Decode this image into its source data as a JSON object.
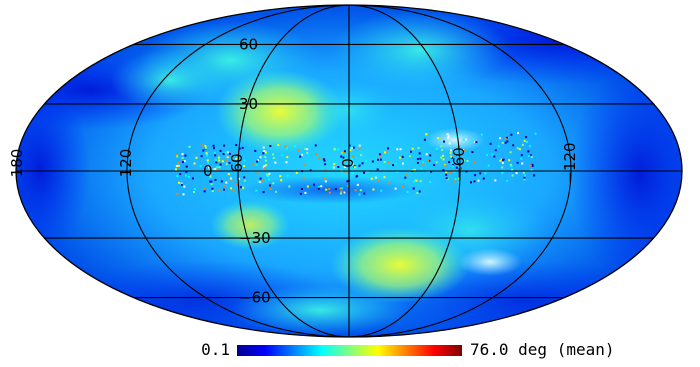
{
  "chart_data": {
    "type": "heatmap",
    "projection": "mollweide",
    "colormap": "jet",
    "colormap_stops": [
      "#00008f",
      "#0000ff",
      "#0080ff",
      "#00ffff",
      "#80ff80",
      "#ffff00",
      "#ff8000",
      "#ff0000",
      "#800000"
    ],
    "background": "#ffffff",
    "grid": true,
    "lat_ticks": [
      {
        "value": 60,
        "label": "60"
      },
      {
        "value": 30,
        "label": "30"
      },
      {
        "value": 0,
        "label": "0"
      },
      {
        "value": -30,
        "label": "−30"
      },
      {
        "value": -60,
        "label": "−60"
      }
    ],
    "lon_ticks": [
      {
        "value": 180,
        "label": "180"
      },
      {
        "value": 120,
        "label": "120"
      },
      {
        "value": 60,
        "label": "60"
      },
      {
        "value": 0,
        "label": "0"
      },
      {
        "value": -60,
        "label": "−60"
      },
      {
        "value": -120,
        "label": "−120"
      }
    ],
    "colorbar": {
      "min_label": "0.1",
      "max_label": "76.0 deg (mean)",
      "min": 0.1,
      "max": 76.0,
      "unit": "deg",
      "statistic": "mean"
    }
  }
}
